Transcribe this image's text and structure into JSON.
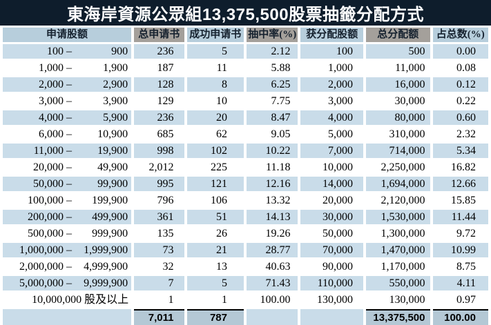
{
  "title": "東海岸資源公眾組13,375,500股票抽籤分配方式",
  "colors": {
    "title_bg": "#0e1d2c",
    "title_text": "#ffffff",
    "header_blue": "#b7cedc",
    "header_gray": "#a4a09b",
    "header_text": "#16222f",
    "row_blue": "#c9dce9",
    "row_white": "#ffffff",
    "body_text": "#000000",
    "totals_cell_bg": "#b4c8d5",
    "totals_border": "#000000"
  },
  "table": {
    "columns": [
      {
        "id": "apply-range",
        "label": "申请股额",
        "tone": "blue"
      },
      {
        "id": "total-applications",
        "label": "总申请书",
        "tone": "gray"
      },
      {
        "id": "successful-applications",
        "label": "成功申请书",
        "tone": "blue"
      },
      {
        "id": "ballot-rate-pct",
        "label": "抽中率(%)",
        "tone": "gray"
      },
      {
        "id": "shares-allotted-each",
        "label": "获分配股额",
        "tone": "blue"
      },
      {
        "id": "total-shares-allotted",
        "label": "总分配额",
        "tone": "gray"
      },
      {
        "id": "pct-of-total",
        "label": "占总数(%)",
        "tone": "blue"
      }
    ],
    "rows": [
      {
        "range_lo": "100",
        "range_dash": "–",
        "range_hi": "900",
        "values": [
          "236",
          "5",
          "2.12",
          "100",
          "500",
          "0.00"
        ]
      },
      {
        "range_lo": "1,000",
        "range_dash": "–",
        "range_hi": "1,900",
        "values": [
          "187",
          "11",
          "5.88",
          "1,000",
          "11,000",
          "0.08"
        ]
      },
      {
        "range_lo": "2,000",
        "range_dash": "–",
        "range_hi": "2,900",
        "values": [
          "128",
          "8",
          "6.25",
          "2,000",
          "16,000",
          "0.12"
        ]
      },
      {
        "range_lo": "3,000",
        "range_dash": "–",
        "range_hi": "3,900",
        "values": [
          "129",
          "10",
          "7.75",
          "3,000",
          "30,000",
          "0.22"
        ]
      },
      {
        "range_lo": "4,000",
        "range_dash": "–",
        "range_hi": "5,900",
        "values": [
          "236",
          "20",
          "8.47",
          "4,000",
          "80,000",
          "0.60"
        ]
      },
      {
        "range_lo": "6,000",
        "range_dash": "–",
        "range_hi": "10,900",
        "values": [
          "685",
          "62",
          "9.05",
          "5,000",
          "310,000",
          "2.32"
        ]
      },
      {
        "range_lo": "11,000",
        "range_dash": "–",
        "range_hi": "19,900",
        "values": [
          "998",
          "102",
          "10.22",
          "7,000",
          "714,000",
          "5.34"
        ]
      },
      {
        "range_lo": "20,000",
        "range_dash": "–",
        "range_hi": "49,900",
        "values": [
          "2,012",
          "225",
          "11.18",
          "10,000",
          "2,250,000",
          "16.82"
        ]
      },
      {
        "range_lo": "50,000",
        "range_dash": "–",
        "range_hi": "99,900",
        "values": [
          "995",
          "121",
          "12.16",
          "14,000",
          "1,694,000",
          "12.66"
        ]
      },
      {
        "range_lo": "100,000",
        "range_dash": "–",
        "range_hi": "199,900",
        "values": [
          "796",
          "106",
          "13.32",
          "20,000",
          "2,120,000",
          "15.85"
        ]
      },
      {
        "range_lo": "200,000",
        "range_dash": "–",
        "range_hi": "499,900",
        "values": [
          "361",
          "51",
          "14.13",
          "30,000",
          "1,530,000",
          "11.44"
        ]
      },
      {
        "range_lo": "500,000",
        "range_dash": "–",
        "range_hi": "999,900",
        "values": [
          "135",
          "26",
          "19.26",
          "50,000",
          "1,300,000",
          "9.72"
        ]
      },
      {
        "range_lo": "1,000,000",
        "range_dash": "–",
        "range_hi": "1,999,900",
        "values": [
          "73",
          "21",
          "28.77",
          "70,000",
          "1,470,000",
          "10.99"
        ]
      },
      {
        "range_lo": "2,000,000",
        "range_dash": "–",
        "range_hi": "4,999,900",
        "values": [
          "32",
          "13",
          "40.63",
          "90,000",
          "1,170,000",
          "8.75"
        ]
      },
      {
        "range_lo": "5,000,000",
        "range_dash": "–",
        "range_hi": "9,999,900",
        "values": [
          "7",
          "5",
          "71.43",
          "110,000",
          "550,000",
          "4.11"
        ]
      },
      {
        "range_lo": "10,000,000",
        "range_dash": "",
        "range_hi": "股及以上",
        "values": [
          "1",
          "1",
          "100.00",
          "130,000",
          "130,000",
          "0.97"
        ]
      }
    ],
    "totals": {
      "range": "",
      "values": [
        "7,011",
        "787",
        "",
        "",
        "13,375,500",
        "100.00"
      ]
    }
  }
}
